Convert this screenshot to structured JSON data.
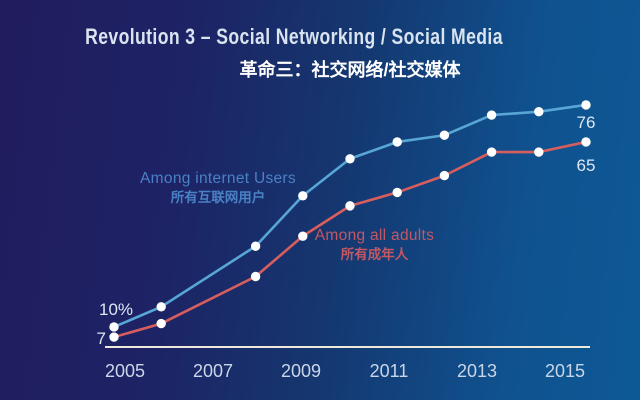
{
  "header": {
    "title": "Revolution 3 – Social Networking / Social Media",
    "subtitle_zh": "革命三：社交网络/社交媒体"
  },
  "chart_data": {
    "type": "line",
    "x": [
      2005,
      2006,
      2008,
      2009,
      2010,
      2011,
      2012,
      2013,
      2014,
      2015
    ],
    "x_axis_tick_labels": [
      "2005",
      "2007",
      "2009",
      "2011",
      "2013",
      "2015"
    ],
    "xlabel": "",
    "ylabel": "",
    "ylim": [
      0,
      80
    ],
    "grid": false,
    "legend_position": "inline-near-lines",
    "series": [
      {
        "name": "Among internet Users",
        "name_zh": "所有互联网用户",
        "color": "#58a6d6",
        "label_color": "#4a80c4",
        "values": [
          10,
          16,
          34,
          49,
          60,
          65,
          67,
          73,
          74,
          76
        ],
        "start_label": "10%",
        "end_label": "76"
      },
      {
        "name": "Among all adults",
        "name_zh": "所有成年人",
        "color": "#d85e5e",
        "label_color": "#c25864",
        "values": [
          7,
          11,
          25,
          37,
          46,
          50,
          55,
          62,
          62,
          65
        ],
        "start_label": "7",
        "end_label": "65"
      }
    ],
    "colors": {
      "background_left": "#211c5e",
      "background_right": "#0d5996",
      "title": "#d9e4f0",
      "subtitle": "#ffffff",
      "axis_line": "#eee9da",
      "tick_label": "#c9d6e8",
      "value_label": "#dde7f2",
      "dot": "#ffffff"
    }
  }
}
